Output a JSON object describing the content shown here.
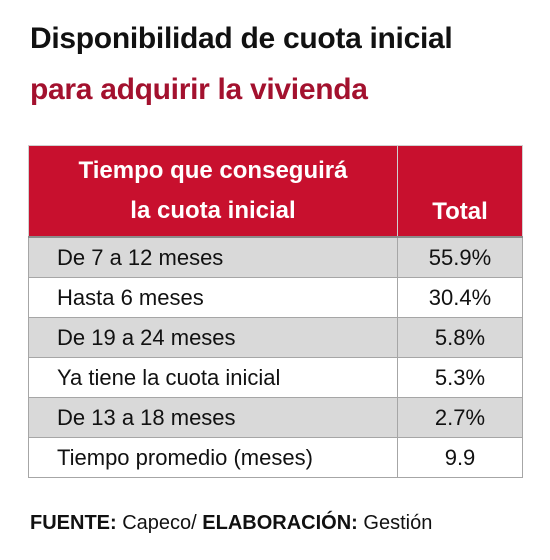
{
  "title": {
    "line1": "Disponibilidad de cuota inicial",
    "line2": "para adquirir la vivienda"
  },
  "table": {
    "header": {
      "period_line1": "Tiempo que conseguirá",
      "period_line2": "la cuota inicial",
      "total": "Total"
    },
    "rows": [
      {
        "period": "De 7 a 12 meses",
        "total": "55.9%"
      },
      {
        "period": "Hasta 6 meses",
        "total": "30.4%"
      },
      {
        "period": "De 19 a 24 meses",
        "total": "5.8%"
      },
      {
        "period": "Ya tiene la cuota inicial",
        "total": "5.3%"
      },
      {
        "period": "De 13 a 18 meses",
        "total": "2.7%"
      },
      {
        "period": "Tiempo promedio (meses)",
        "total": "9.9"
      }
    ]
  },
  "source": {
    "source_label": "FUENTE:",
    "source_value": "Capeco/",
    "elaboration_label": "ELABORACIÓN:",
    "elaboration_value": "Gestión"
  },
  "colors": {
    "header_background": "#c8102e",
    "subtitle": "#a3112e",
    "shaded_row": "#d9d9d9"
  }
}
